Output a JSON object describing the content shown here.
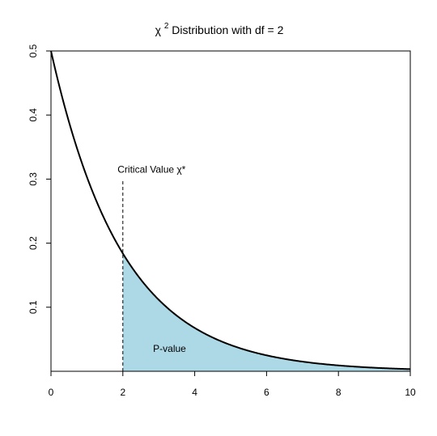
{
  "chart_data": {
    "type": "area",
    "title": {
      "symbol": "χ",
      "superscript": "2",
      "text": " Distribution with df = 2"
    },
    "xlabel": "",
    "ylabel": "",
    "xlim": [
      0,
      10
    ],
    "ylim": [
      0,
      0.5
    ],
    "x_ticks": [
      0,
      2,
      4,
      6,
      8,
      10
    ],
    "x_tick_labels": [
      "0",
      "2",
      "4",
      "6",
      "8",
      "10"
    ],
    "y_ticks": [
      0.1,
      0.2,
      0.3,
      0.4,
      0.5
    ],
    "y_tick_labels": [
      "0.1",
      "0.2",
      "0.3",
      "0.4",
      "0.5"
    ],
    "grid": false,
    "curve": {
      "function": "chi-square density",
      "df": 2,
      "x_range": [
        0,
        10
      ],
      "color": "#000000"
    },
    "shaded_region": {
      "x_range": [
        2,
        10
      ],
      "color": "#add8e6"
    },
    "critical_line": {
      "x": 2,
      "y_top": 0.3
    },
    "annotations": {
      "critical_value": {
        "text": "Critical Value χ*",
        "x": 2.8,
        "y": 0.31
      },
      "p_value": {
        "text": "P-value",
        "x": 3.3,
        "y": 0.03
      }
    }
  }
}
